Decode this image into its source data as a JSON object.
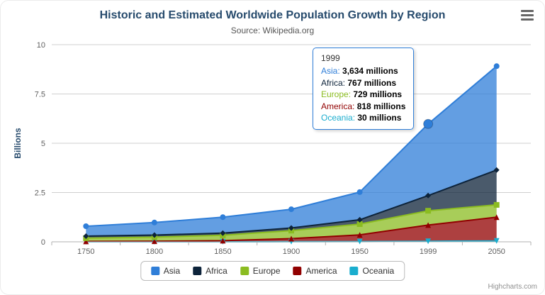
{
  "header": {
    "title": "Historic and Estimated Worldwide Population Growth by Region",
    "subtitle": "Source: Wikipedia.org"
  },
  "chart_data": {
    "type": "area",
    "stacking": "normal",
    "unit": "millions",
    "title": "Historic and Estimated Worldwide Population Growth by Region",
    "subtitle": "Source: Wikipedia.org",
    "categories": [
      "1750",
      "1800",
      "1850",
      "1900",
      "1950",
      "1999",
      "2050"
    ],
    "series": [
      {
        "name": "Asia",
        "color": "#2f7ed8",
        "marker": "circle",
        "values": [
          502,
          635,
          809,
          947,
          1402,
          3634,
          5268
        ]
      },
      {
        "name": "Africa",
        "color": "#0d233a",
        "marker": "diamond",
        "values": [
          106,
          107,
          111,
          133,
          221,
          767,
          1766
        ]
      },
      {
        "name": "Europe",
        "color": "#8bbc21",
        "marker": "square",
        "values": [
          163,
          203,
          276,
          408,
          547,
          729,
          628
        ]
      },
      {
        "name": "America",
        "color": "#910000",
        "marker": "triangle",
        "values": [
          18,
          31,
          54,
          156,
          339,
          818,
          1201
        ]
      },
      {
        "name": "Oceania",
        "color": "#1aadce",
        "marker": "triangle-down",
        "values": [
          2,
          2,
          2,
          6,
          13,
          30,
          46
        ]
      }
    ],
    "stack_order_bottom_to_top": [
      "Oceania",
      "America",
      "Europe",
      "Africa",
      "Asia"
    ],
    "value_scale_to_billions": 0.001,
    "xlabel": "",
    "ylabel": "Billions",
    "yticks": [
      0,
      2.5,
      5,
      7.5,
      10
    ],
    "ylim": [
      0,
      10
    ],
    "grid": true,
    "legend_position": "bottom",
    "hover_point": {
      "series": "Asia",
      "category": "1999"
    }
  },
  "tooltip": {
    "header": "1999",
    "rows": [
      {
        "label": "Asia:",
        "value": "3,634 millions",
        "color": "#2f7ed8"
      },
      {
        "label": "Africa:",
        "value": "767 millions",
        "color": "#0d233a"
      },
      {
        "label": "Europe:",
        "value": "729 millions",
        "color": "#8bbc21"
      },
      {
        "label": "America:",
        "value": "818 millions",
        "color": "#910000"
      },
      {
        "label": "Oceania:",
        "value": "30 millions",
        "color": "#1aadce"
      }
    ]
  },
  "legend": {
    "items": [
      {
        "label": "Asia",
        "color": "#2f7ed8"
      },
      {
        "label": "Africa",
        "color": "#0d233a"
      },
      {
        "label": "Europe",
        "color": "#8bbc21"
      },
      {
        "label": "America",
        "color": "#910000"
      },
      {
        "label": "Oceania",
        "color": "#1aadce"
      }
    ]
  },
  "credits": "Highcharts.com"
}
